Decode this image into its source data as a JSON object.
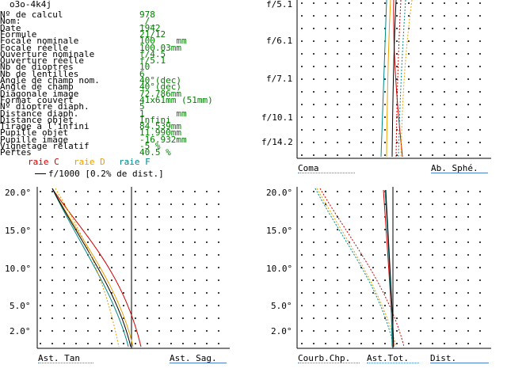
{
  "window_title": "o3o-4k4j",
  "info_rows": [
    {
      "label": "Nº de calcul",
      "value": "978"
    },
    {
      "label": "Nom:",
      "value": "_/_"
    },
    {
      "label": "Date",
      "value": "1942"
    },
    {
      "label": "Formule",
      "value": "21/12"
    },
    {
      "label": "Focale nominale",
      "value": "100    mm"
    },
    {
      "label": "Focale réelle",
      "value": "100.03mm"
    },
    {
      "label": "Ouverture nominale",
      "value": "f/4.5"
    },
    {
      "label": "Ouverture réelle",
      "value": "f/5.1"
    },
    {
      "label": "Nb de dioptres",
      "value": "10"
    },
    {
      "label": "Nb de lentilles",
      "value": "6"
    },
    {
      "label": "Angle de champ nom.",
      "value": "40°(dec)"
    },
    {
      "label": "Angle de champ",
      "value": "40°(dec)"
    },
    {
      "label": "Diagonale image",
      "value": "72.786mm"
    },
    {
      "label": "Format couvert",
      "value": "41x61mm (51mm)"
    },
    {
      "label": "Nº dioptre diaph.",
      "value": "5"
    },
    {
      "label": "Distance diaph.",
      "value": "1      mm"
    },
    {
      "label": "Distance objet",
      "value": "Infini"
    },
    {
      "label": "Tirage à l'infini",
      "value": "84.539mm"
    },
    {
      "label": "Pupille objet",
      "value": "11.990mm"
    },
    {
      "label": "Pupille image",
      "value": "-16.932mm"
    },
    {
      "label": "Vignetage relatif",
      "value": "-5 %"
    },
    {
      "label": "Pertes",
      "value": "40.5 %"
    }
  ],
  "legend": {
    "raie_c": "raie C",
    "raie_d": "raie D",
    "raie_f": "raie F",
    "scale_note": "f/1000 [0.2% de dist.]"
  },
  "colors": {
    "raie_c": "#d00000",
    "raie_d": "#e8a000",
    "raie_f": "#008888",
    "value_green": "#008000",
    "underline_blue": "#4a7ed0"
  },
  "coma_panel": {
    "y_labels": [
      "f/5.1",
      "f/6.1",
      "f/7.1",
      "f/10.1",
      "f/14.2"
    ],
    "caption_left": "Coma",
    "caption_right": "Ab. Sphé."
  },
  "ast_panel": {
    "y_labels": [
      "20.0°",
      "15.0°",
      "10.0°",
      "5.0°",
      "2.0°"
    ],
    "caption_left": "Ast. Tan",
    "caption_right": "Ast. Sag."
  },
  "field_panel": {
    "y_labels": [
      "20.0°",
      "15.0°",
      "10.0°",
      "5.0°",
      "2.0°"
    ],
    "caption_left": "Courb.Chp.",
    "caption_mid": "Ast.Tot.",
    "caption_right": "Dist."
  }
}
